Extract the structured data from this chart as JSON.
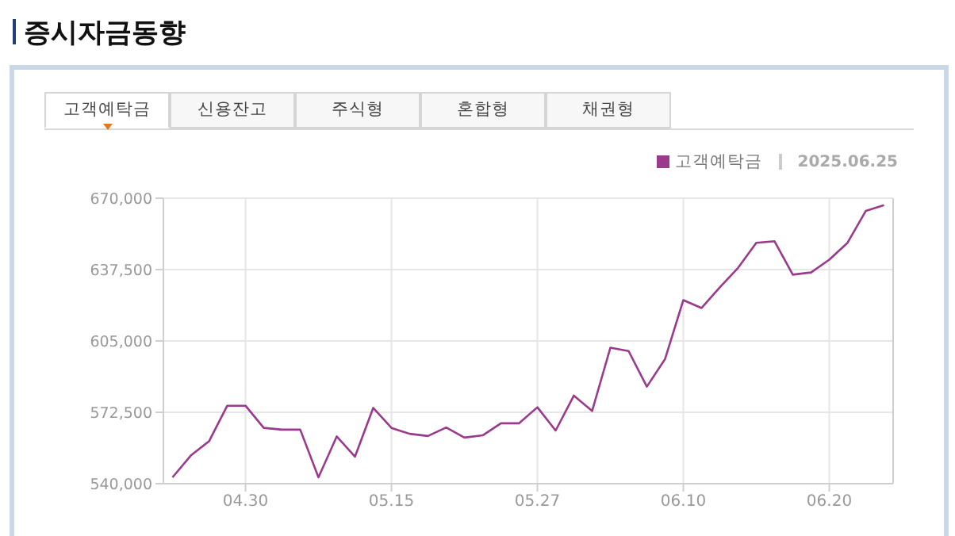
{
  "chart_data": {
    "type": "line",
    "title": "증시자금동향",
    "categories": [
      null,
      null,
      null,
      null,
      "04.30",
      null,
      null,
      null,
      null,
      null,
      null,
      null,
      "05.15",
      null,
      null,
      null,
      null,
      null,
      null,
      null,
      "05.27",
      null,
      null,
      null,
      null,
      null,
      null,
      null,
      "06.10",
      null,
      null,
      null,
      null,
      null,
      null,
      null,
      "06.20",
      null,
      null,
      null
    ],
    "series": [
      {
        "name": "고객예탁금",
        "color": "#9b3a8c",
        "values": [
          542900,
          552800,
          559300,
          575500,
          575500,
          565400,
          564600,
          564600,
          542900,
          561500,
          552300,
          574500,
          565400,
          562700,
          561700,
          565600,
          561000,
          562000,
          567500,
          567500,
          574800,
          564200,
          580100,
          573100,
          601900,
          600400,
          584200,
          596800,
          623600,
          620000,
          629400,
          638300,
          649700,
          650400,
          635200,
          636200,
          642000,
          649700,
          664200,
          666800
        ]
      }
    ],
    "ylim": [
      540000,
      670000
    ],
    "yticks": [
      {
        "value": 540000,
        "label": "540,000"
      },
      {
        "value": 572500,
        "label": "572,500"
      },
      {
        "value": 605000,
        "label": "605,000"
      },
      {
        "value": 637500,
        "label": "637,500"
      },
      {
        "value": 670000,
        "label": "670,000"
      }
    ],
    "grid": true,
    "legend": "top right",
    "marker": "none",
    "line_style": "solid",
    "annotations": [
      "고객예탁금",
      "신용잔고",
      "주식형",
      "혼합형",
      "채권형",
      "2025.06.25"
    ]
  }
}
